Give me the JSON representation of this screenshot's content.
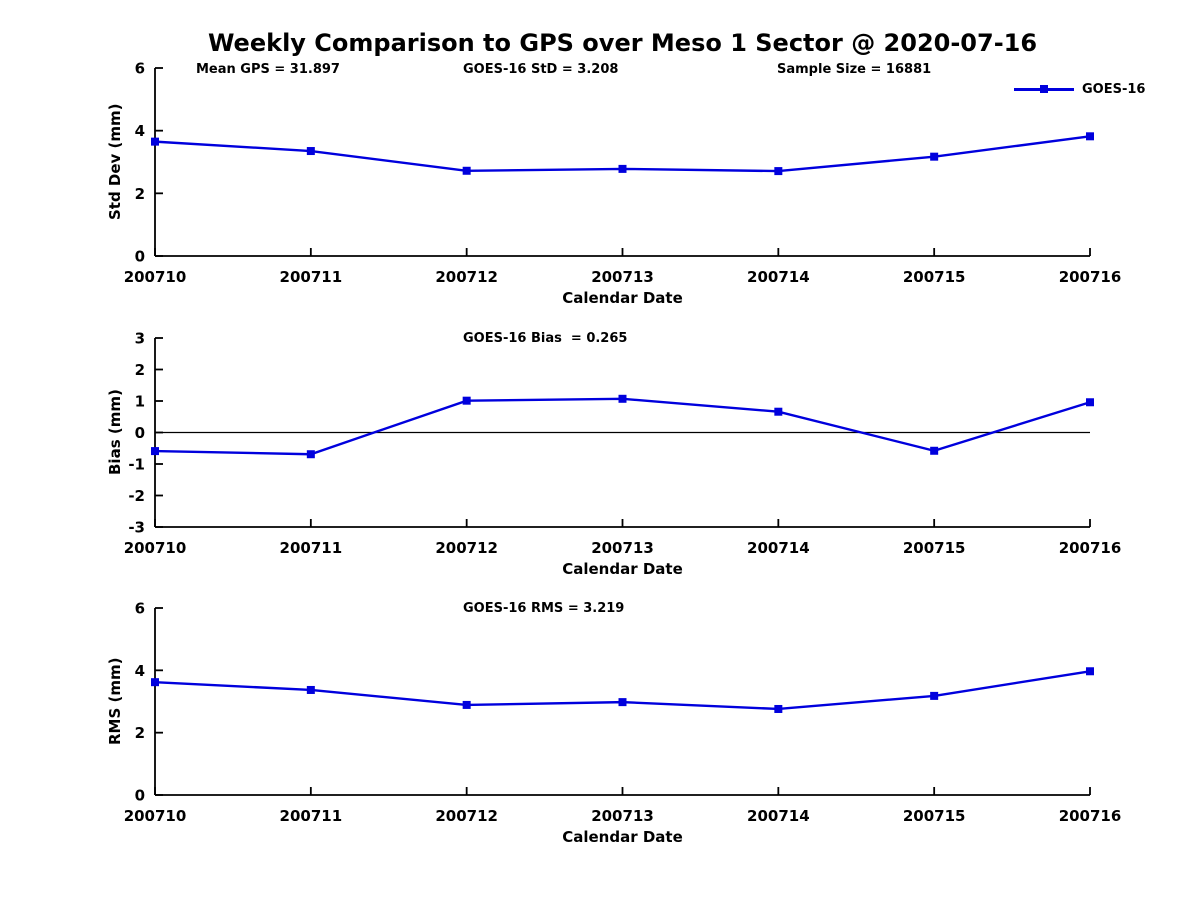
{
  "page": {
    "title": "Weekly Comparison to GPS over Meso 1 Sector @ 2020-07-16"
  },
  "legend": {
    "label": "GOES-16"
  },
  "colors": {
    "line": "#0000DD",
    "axis": "#000000",
    "background": "#FFFFFF"
  },
  "chart_data": [
    {
      "type": "line",
      "name": "std-dev",
      "annotations": {
        "mean_gps": "Mean GPS = 31.897",
        "std": "GOES-16 StD = 3.208",
        "sample_size": "Sample Size = 16881"
      },
      "categories": [
        "200710",
        "200711",
        "200712",
        "200713",
        "200714",
        "200715",
        "200716"
      ],
      "series": [
        {
          "name": "GOES-16",
          "values": [
            3.65,
            3.35,
            2.72,
            2.78,
            2.71,
            3.17,
            3.82
          ]
        }
      ],
      "xlabel": "Calendar Date",
      "ylabel": "Std Dev (mm)",
      "ylim": [
        0,
        6
      ],
      "yticks": [
        0,
        2,
        4,
        6
      ],
      "grid": false,
      "legend_position": "top-right",
      "marker": "square"
    },
    {
      "type": "line",
      "name": "bias",
      "annotations": {
        "bias": "GOES-16 Bias  = 0.265"
      },
      "categories": [
        "200710",
        "200711",
        "200712",
        "200713",
        "200714",
        "200715",
        "200716"
      ],
      "series": [
        {
          "name": "GOES-16",
          "values": [
            -0.59,
            -0.69,
            1.01,
            1.07,
            0.66,
            -0.58,
            0.96
          ]
        }
      ],
      "xlabel": "Calendar Date",
      "ylabel": "Bias (mm)",
      "ylim": [
        -3,
        3
      ],
      "yticks": [
        -3,
        -2,
        -1,
        0,
        1,
        2,
        3
      ],
      "zero_line": true,
      "grid": false,
      "marker": "square"
    },
    {
      "type": "line",
      "name": "rms",
      "annotations": {
        "rms": "GOES-16 RMS = 3.219"
      },
      "categories": [
        "200710",
        "200711",
        "200712",
        "200713",
        "200714",
        "200715",
        "200716"
      ],
      "series": [
        {
          "name": "GOES-16",
          "values": [
            3.62,
            3.37,
            2.89,
            2.98,
            2.76,
            3.18,
            3.97
          ]
        }
      ],
      "xlabel": "Calendar Date",
      "ylabel": "RMS (mm)",
      "ylim": [
        0,
        6
      ],
      "yticks": [
        0,
        2,
        4,
        6
      ],
      "grid": false,
      "marker": "square"
    }
  ]
}
